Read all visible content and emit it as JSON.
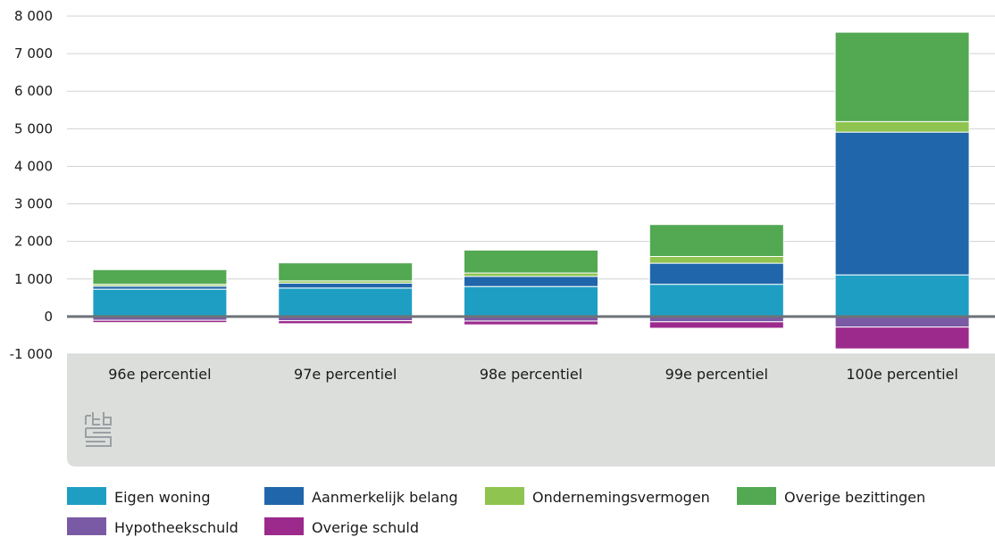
{
  "chart_data": {
    "type": "bar",
    "stacked": true,
    "categories": [
      "96e percentiel",
      "97e percentiel",
      "98e percentiel",
      "99e percentiel",
      "100e percentiel"
    ],
    "ylim": [
      -1000,
      8000
    ],
    "yticks": [
      8000,
      7000,
      6000,
      5000,
      4000,
      3000,
      2000,
      1000,
      0,
      -1000
    ],
    "ytick_labels": [
      "8 000",
      "7 000",
      "6 000",
      "5 000",
      "4 000",
      "3 000",
      "2 000",
      "1 000",
      "0",
      "-1 000"
    ],
    "grid": "horizontal",
    "legend_position": "bottom",
    "positive_series": [
      {
        "name": "Eigen woning",
        "color": "#1f9ec4",
        "values": [
          730,
          760,
          800,
          860,
          1110
        ]
      },
      {
        "name": "Aanmerkelijk belang",
        "color": "#2066aa",
        "values": [
          80,
          130,
          270,
          560,
          3800
        ]
      },
      {
        "name": "Ondernemingsvermogen",
        "color": "#8ec44f",
        "values": [
          50,
          60,
          90,
          180,
          280
        ]
      },
      {
        "name": "Overige bezittingen",
        "color": "#53a852",
        "values": [
          390,
          480,
          610,
          850,
          2380
        ]
      }
    ],
    "negative_series": [
      {
        "name": "Hypotheekschuld",
        "color": "#7a5aa5",
        "values": [
          -100,
          -110,
          -120,
          -140,
          -280
        ]
      },
      {
        "name": "Overige schuld",
        "color": "#9c2a8c",
        "values": [
          -60,
          -80,
          -100,
          -170,
          -580
        ]
      }
    ],
    "legend_order": [
      "Eigen woning",
      "Aanmerkelijk belang",
      "Ondernemingsvermogen",
      "Overige bezittingen",
      "Hypotheekschuld",
      "Overige schuld"
    ],
    "colors": {
      "panel": "#dcdedb",
      "zero_line": "#6d7378",
      "grid": "#cfd3d6"
    }
  }
}
